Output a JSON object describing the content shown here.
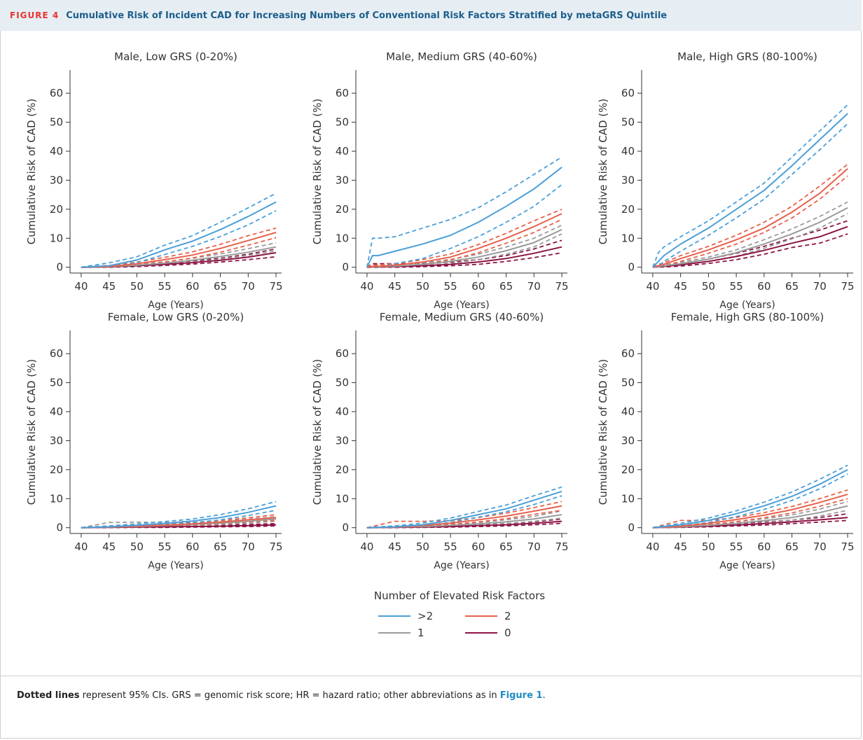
{
  "figure": {
    "label": "FIGURE 4",
    "title": "Cumulative Risk of Incident CAD for Increasing Numbers of Conventional Risk Factors Stratified by metaGRS Quintile"
  },
  "legend": {
    "title": "Number of Elevated Risk Factors",
    "entries": [
      {
        "label": ">2",
        "color": "#4a9fd8"
      },
      {
        "label": "2",
        "color": "#e8604a"
      },
      {
        "label": "1",
        "color": "#9a9a9a"
      },
      {
        "label": "0",
        "color": "#8c1343"
      }
    ]
  },
  "footnote": {
    "bold": "Dotted lines",
    "text": " represent 95% CIs. GRS = genomic risk score; HR = hazard ratio; other abbreviations as in ",
    "ref": "Figure 1",
    "end": "."
  },
  "chart_data": [
    {
      "type": "line",
      "title": "Male, Low GRS (0-20%)",
      "xlabel": "Age (Years)",
      "ylabel": "Cumulative Risk of CAD (%)",
      "xlim": [
        38,
        76
      ],
      "ylim": [
        -2,
        68
      ],
      "xticks": [
        40,
        45,
        50,
        55,
        60,
        65,
        70,
        75
      ],
      "yticks": [
        0,
        10,
        20,
        30,
        40,
        50,
        60
      ],
      "x": [
        40,
        45,
        50,
        55,
        60,
        65,
        70,
        75
      ],
      "series": [
        {
          "name": ">2",
          "values": [
            0,
            0.5,
            2.5,
            6,
            9,
            13,
            17.5,
            22.5
          ],
          "lower": [
            0,
            0.2,
            1.6,
            4.4,
            7.2,
            10.6,
            14.6,
            19.5
          ],
          "upper": [
            0,
            1.5,
            3.6,
            7.6,
            10.9,
            15.5,
            20.5,
            25.5
          ]
        },
        {
          "name": "2",
          "values": [
            0,
            0.3,
            1.2,
            2.6,
            4.2,
            6.5,
            9.2,
            12
          ],
          "lower": [
            0,
            0.1,
            0.7,
            1.8,
            3.2,
            5.2,
            7.6,
            10.2
          ],
          "upper": [
            0,
            0.6,
            1.8,
            3.4,
            5.3,
            7.9,
            10.9,
            13.5
          ]
        },
        {
          "name": "1",
          "values": [
            0,
            0.2,
            0.7,
            1.4,
            2.4,
            3.7,
            5.2,
            7
          ],
          "lower": [
            0,
            0.1,
            0.4,
            0.9,
            1.7,
            2.8,
            4.1,
            5.6
          ],
          "upper": [
            0,
            0.4,
            1.1,
            1.9,
            3.1,
            4.6,
            6.4,
            8.4
          ]
        },
        {
          "name": "0",
          "values": [
            0,
            0.1,
            0.5,
            1,
            1.6,
            2.4,
            3.5,
            5
          ],
          "lower": [
            0,
            0,
            0.2,
            0.6,
            1.1,
            1.8,
            2.6,
            3.6
          ],
          "upper": [
            0,
            0.3,
            0.8,
            1.4,
            2.2,
            3.1,
            4.5,
            6.3
          ]
        }
      ]
    },
    {
      "type": "line",
      "title": "Male, Medium GRS (40-60%)",
      "xlabel": "Age (Years)",
      "ylabel": "Cumulative Risk of CAD (%)",
      "xlim": [
        38,
        76
      ],
      "ylim": [
        -2,
        68
      ],
      "xticks": [
        40,
        45,
        50,
        55,
        60,
        65,
        70,
        75
      ],
      "yticks": [
        0,
        10,
        20,
        30,
        40,
        50,
        60
      ],
      "x": [
        40,
        41,
        42,
        45,
        50,
        55,
        60,
        65,
        70,
        75
      ],
      "series": [
        {
          "name": ">2",
          "values": [
            0,
            4,
            4,
            5.5,
            8,
            11,
            15.5,
            21,
            27,
            34.5
          ],
          "lower": [
            0,
            0,
            0,
            1.2,
            3,
            6.5,
            10.5,
            15.5,
            21,
            28.5
          ],
          "upper": [
            0,
            10,
            10,
            10.5,
            13.5,
            16.5,
            20.5,
            26,
            32,
            38
          ]
        },
        {
          "name": "2",
          "values": [
            0,
            0.3,
            0.3,
            0.7,
            1.8,
            3.5,
            6.5,
            10,
            14,
            18.5
          ],
          "lower": [
            0,
            0,
            0,
            0.3,
            1,
            2.5,
            5,
            8.3,
            12,
            16.5
          ],
          "upper": [
            0,
            0.8,
            0.8,
            1.2,
            2.6,
            4.6,
            7.8,
            11.7,
            16,
            20
          ]
        },
        {
          "name": "1",
          "values": [
            0,
            0.2,
            0.2,
            0.4,
            1,
            2,
            3.5,
            5.7,
            8.5,
            13
          ],
          "lower": [
            0,
            0,
            0,
            0.1,
            0.6,
            1.3,
            2.6,
            4.5,
            7,
            11.5
          ],
          "upper": [
            0,
            0.5,
            0.5,
            0.8,
            1.5,
            2.7,
            4.5,
            7,
            10,
            14.5
          ]
        },
        {
          "name": "0",
          "values": [
            0,
            0.1,
            0.1,
            0.2,
            0.5,
            1,
            1.8,
            3,
            4.8,
            7
          ],
          "lower": [
            0,
            0,
            0,
            0,
            0.2,
            0.5,
            1,
            2,
            3.3,
            5
          ],
          "upper": [
            0,
            1.2,
            1.2,
            1.2,
            1.3,
            1.8,
            2.6,
            4,
            6.3,
            9.3
          ]
        }
      ]
    },
    {
      "type": "line",
      "title": "Male, High GRS (80-100%)",
      "xlabel": "Age (Years)",
      "ylabel": "Cumulative Risk of CAD (%)",
      "xlim": [
        38,
        76
      ],
      "ylim": [
        -2,
        68
      ],
      "xticks": [
        40,
        45,
        50,
        55,
        60,
        65,
        70,
        75
      ],
      "yticks": [
        0,
        10,
        20,
        30,
        40,
        50,
        60
      ],
      "x": [
        40,
        41,
        42,
        45,
        50,
        55,
        60,
        65,
        70,
        75
      ],
      "series": [
        {
          "name": ">2",
          "values": [
            0,
            2,
            4,
            8,
            13.5,
            20,
            26.5,
            35,
            44,
            53
          ],
          "lower": [
            0,
            0.5,
            2,
            5.5,
            11,
            17,
            23.5,
            32,
            40.5,
            49.5
          ],
          "upper": [
            0,
            5,
            7,
            10.5,
            16,
            22.5,
            29,
            38,
            47,
            56
          ]
        },
        {
          "name": "2",
          "values": [
            0,
            0.5,
            1,
            3,
            6,
            9.5,
            13.5,
            19,
            25.5,
            34
          ],
          "lower": [
            0,
            0.2,
            0.5,
            2,
            4.8,
            8,
            12,
            17,
            23.5,
            31.5
          ],
          "upper": [
            0,
            1,
            1.5,
            4,
            7.2,
            11,
            15.5,
            21,
            28,
            35.5
          ]
        },
        {
          "name": "1",
          "values": [
            0,
            0.3,
            0.5,
            1.2,
            2.8,
            5,
            8,
            11.5,
            15.5,
            20.5
          ],
          "lower": [
            0,
            0.1,
            0.3,
            0.8,
            2,
            3.8,
            6.5,
            9.8,
            13.5,
            18.5
          ],
          "upper": [
            0,
            0.6,
            0.8,
            1.7,
            3.5,
            6,
            9.5,
            13.2,
            17.5,
            22.5
          ]
        },
        {
          "name": "0",
          "values": [
            0,
            0.2,
            0.3,
            0.8,
            2,
            3.7,
            5.8,
            8.3,
            10.5,
            14
          ],
          "lower": [
            0,
            0.1,
            0.1,
            0.4,
            1.3,
            2.6,
            4.5,
            6.8,
            8.3,
            11.5
          ],
          "upper": [
            0,
            0.4,
            0.5,
            1.2,
            2.8,
            4.8,
            7.2,
            10,
            12.8,
            16
          ]
        }
      ]
    },
    {
      "type": "line",
      "title": "Female, Low GRS (0-20%)",
      "xlabel": "Age (Years)",
      "ylabel": "Cumulative Risk of CAD (%)",
      "xlim": [
        38,
        76
      ],
      "ylim": [
        -2,
        68
      ],
      "xticks": [
        40,
        45,
        50,
        55,
        60,
        65,
        70,
        75
      ],
      "yticks": [
        0,
        10,
        20,
        30,
        40,
        50,
        60
      ],
      "x": [
        40,
        45,
        50,
        55,
        60,
        65,
        70,
        75
      ],
      "series": [
        {
          "name": ">2",
          "values": [
            0,
            0.3,
            0.8,
            1.5,
            2.3,
            3.5,
            5.3,
            7.5
          ],
          "lower": [
            0,
            0.1,
            0.4,
            1,
            1.7,
            2.7,
            4.2,
            6
          ],
          "upper": [
            0,
            0.6,
            1.3,
            2.1,
            3,
            4.5,
            6.5,
            9
          ]
        },
        {
          "name": "2",
          "values": [
            0,
            0.2,
            0.5,
            0.9,
            1.3,
            1.9,
            2.7,
            3.5
          ],
          "lower": [
            0,
            0.1,
            0.2,
            0.5,
            0.9,
            1.4,
            2,
            2.6
          ],
          "upper": [
            0,
            0.5,
            0.8,
            1.3,
            1.8,
            2.5,
            3.4,
            4.5
          ]
        },
        {
          "name": "1",
          "values": [
            0,
            0.2,
            0.4,
            0.7,
            1.1,
            1.6,
            2.2,
            3
          ],
          "lower": [
            0,
            0.1,
            0.2,
            0.4,
            0.7,
            1.1,
            1.6,
            2.2
          ],
          "upper": [
            0,
            1.8,
            1.9,
            1.8,
            1.8,
            2.2,
            2.9,
            3.8
          ]
        },
        {
          "name": "0",
          "values": [
            0,
            0.1,
            0.2,
            0.3,
            0.4,
            0.5,
            0.7,
            1
          ],
          "lower": [
            0,
            0,
            0.1,
            0.1,
            0.2,
            0.3,
            0.4,
            0.6
          ],
          "upper": [
            0,
            0.2,
            0.4,
            0.5,
            0.7,
            0.9,
            1.1,
            1.4
          ]
        }
      ]
    },
    {
      "type": "line",
      "title": "Female, Medium GRS (40-60%)",
      "xlabel": "Age (Years)",
      "ylabel": "Cumulative Risk of CAD (%)",
      "xlim": [
        38,
        76
      ],
      "ylim": [
        -2,
        68
      ],
      "xticks": [
        40,
        45,
        50,
        55,
        60,
        65,
        70,
        75
      ],
      "yticks": [
        0,
        10,
        20,
        30,
        40,
        50,
        60
      ],
      "x": [
        40,
        45,
        50,
        55,
        60,
        65,
        70,
        75
      ],
      "series": [
        {
          "name": ">2",
          "values": [
            0,
            0.3,
            1,
            2.5,
            4.5,
            6.5,
            9.5,
            12.5
          ],
          "lower": [
            0,
            0.1,
            0.6,
            1.8,
            3.6,
            5.5,
            8,
            11
          ],
          "upper": [
            0,
            0.6,
            1.6,
            3.3,
            5.6,
            7.8,
            11,
            14
          ]
        },
        {
          "name": "2",
          "values": [
            0,
            0.2,
            0.7,
            1.6,
            2.7,
            4,
            5.7,
            7.5
          ],
          "lower": [
            0,
            0.1,
            0.4,
            1.1,
            2,
            3.1,
            4.6,
            6
          ],
          "upper": [
            0,
            2.2,
            2.2,
            2.4,
            3.5,
            5,
            6.9,
            9
          ]
        },
        {
          "name": "1",
          "values": [
            0,
            0.2,
            0.4,
            0.8,
            1.3,
            2,
            3,
            4.5
          ],
          "lower": [
            0,
            0.1,
            0.2,
            0.5,
            0.9,
            1.4,
            2.2,
            3.3
          ],
          "upper": [
            0,
            0.4,
            0.7,
            1.2,
            1.8,
            2.7,
            3.9,
            5.8
          ]
        },
        {
          "name": "0",
          "values": [
            0,
            0.1,
            0.2,
            0.4,
            0.7,
            1,
            1.5,
            2.2
          ],
          "lower": [
            0,
            0,
            0.1,
            0.2,
            0.4,
            0.6,
            1,
            1.5
          ],
          "upper": [
            0,
            0.2,
            0.4,
            0.6,
            1,
            1.4,
            2,
            3
          ]
        }
      ]
    },
    {
      "type": "line",
      "title": "Female, High GRS (80-100%)",
      "xlabel": "Age (Years)",
      "ylabel": "Cumulative Risk of CAD (%)",
      "xlim": [
        38,
        76
      ],
      "ylim": [
        -2,
        68
      ],
      "xticks": [
        40,
        45,
        50,
        55,
        60,
        65,
        70,
        75
      ],
      "yticks": [
        0,
        10,
        20,
        30,
        40,
        50,
        60
      ],
      "x": [
        40,
        45,
        50,
        55,
        60,
        65,
        70,
        75
      ],
      "series": [
        {
          "name": ">2",
          "values": [
            0,
            1,
            2.5,
            4.8,
            7.5,
            10.8,
            15,
            20
          ],
          "lower": [
            0,
            0.6,
            1.8,
            3.8,
            6.3,
            9.4,
            13.4,
            18.5
          ],
          "upper": [
            0,
            1.5,
            3.3,
            5.8,
            8.8,
            12.3,
            16.7,
            21.5
          ]
        },
        {
          "name": "2",
          "values": [
            0,
            0.5,
            1.5,
            2.8,
            4.3,
            6.2,
            8.7,
            11.5
          ],
          "lower": [
            0,
            0.3,
            1,
            2.1,
            3.4,
            5.1,
            7.4,
            10
          ],
          "upper": [
            0,
            2.5,
            2.5,
            3.5,
            5.2,
            7.3,
            10,
            13
          ]
        },
        {
          "name": "1",
          "values": [
            0,
            0.3,
            0.8,
            1.5,
            2.4,
            3.5,
            5.2,
            7.5
          ],
          "lower": [
            0,
            0.2,
            0.5,
            1,
            1.7,
            2.6,
            4,
            6
          ],
          "upper": [
            0,
            0.5,
            1.1,
            2,
            3.1,
            4.4,
            6.4,
            9
          ]
        },
        {
          "name": "0",
          "values": [
            0,
            0.2,
            0.5,
            0.9,
            1.4,
            2,
            2.7,
            3.5
          ],
          "lower": [
            0,
            0.1,
            0.3,
            0.6,
            0.9,
            1.4,
            1.9,
            2.5
          ],
          "upper": [
            0,
            0.4,
            0.8,
            1.3,
            1.9,
            2.6,
            3.5,
            4.8
          ]
        }
      ]
    }
  ]
}
